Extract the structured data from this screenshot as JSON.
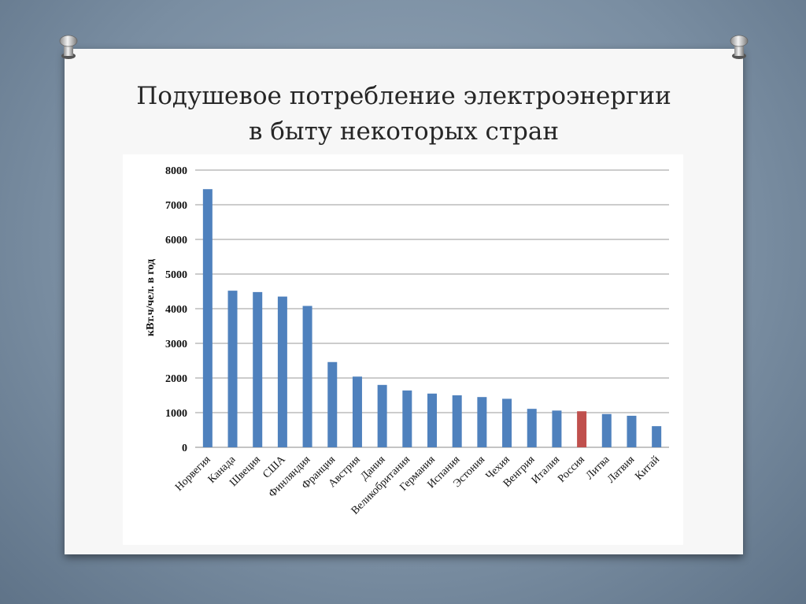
{
  "slide": {
    "title_line1": "Подушевое потребление электроэнергии",
    "title_line2": "в быту некоторых стран"
  },
  "chart_data": {
    "type": "bar",
    "title": "",
    "xlabel": "",
    "ylabel": "кВт.ч/чел. в год",
    "ylim": [
      0,
      8000
    ],
    "yticks": [
      0,
      1000,
      2000,
      3000,
      4000,
      5000,
      6000,
      7000,
      8000
    ],
    "grid": true,
    "categories": [
      "Норвегия",
      "Канада",
      "Швеция",
      "США",
      "Финляндия",
      "Франция",
      "Австрия",
      "Дания",
      "Великобритания",
      "Германия",
      "Испания",
      "Эстония",
      "Чехия",
      "Венгрия",
      "Италия",
      "Россия",
      "Литва",
      "Латвия",
      "Китай"
    ],
    "values": [
      7450,
      4520,
      4480,
      4350,
      4080,
      2460,
      2040,
      1800,
      1640,
      1550,
      1500,
      1450,
      1400,
      1110,
      1060,
      1040,
      960,
      910,
      610
    ],
    "bar_color": "#4f81bd",
    "highlight_color": "#c0504d",
    "highlight_category": "Россия"
  }
}
